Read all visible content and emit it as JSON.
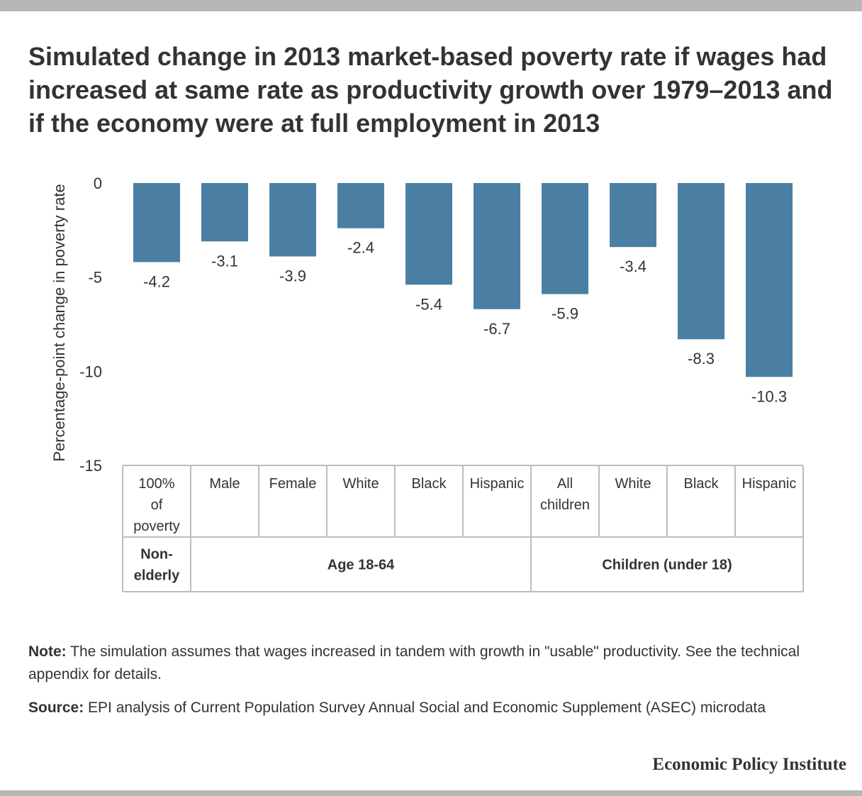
{
  "title": "Simulated change in 2013 market-based poverty rate if wages had increased at same rate as productivity growth over 1979–2013 and if the economy were at full employment in 2013",
  "note": {
    "label": "Note:",
    "text": "The simulation assumes that wages increased in tandem with growth in \"usable\" productivity. See the technical appendix for details."
  },
  "source": {
    "label": "Source:",
    "text": "EPI analysis of Current Population Survey Annual Social and Economic Supplement (ASEC) microdata"
  },
  "brand": "Economic Policy Institute",
  "chart_data": {
    "type": "bar",
    "ylabel": "Percentage-point change in poverty rate",
    "xlabel": "",
    "ylim": [
      -15,
      0
    ],
    "yticks": [
      0,
      -5,
      -10,
      -15
    ],
    "ytick_labels": [
      "0",
      "-5",
      "-10",
      "-15"
    ],
    "grid": false,
    "bar_color": "#4a7fa3",
    "categories": [
      [
        "100%",
        "of",
        "poverty"
      ],
      [
        "Male"
      ],
      [
        "Female"
      ],
      [
        "White"
      ],
      [
        "Black"
      ],
      [
        "Hispanic"
      ],
      [
        "All",
        "children"
      ],
      [
        "White"
      ],
      [
        "Black"
      ],
      [
        "Hispanic"
      ]
    ],
    "values": [
      -4.2,
      -3.1,
      -3.9,
      -2.4,
      -5.4,
      -6.7,
      -5.9,
      -3.4,
      -8.3,
      -10.3
    ],
    "value_labels": [
      "-4.2",
      "-3.1",
      "-3.9",
      "-2.4",
      "-5.4",
      "-6.7",
      "-5.9",
      "-3.4",
      "-8.3",
      "-10.3"
    ],
    "groups": [
      {
        "label": [
          "Non-",
          "elderly"
        ],
        "span": 1
      },
      {
        "label": [
          "Age 18-64"
        ],
        "span": 5
      },
      {
        "label": [
          "Children (under 18)"
        ],
        "span": 4
      }
    ]
  }
}
